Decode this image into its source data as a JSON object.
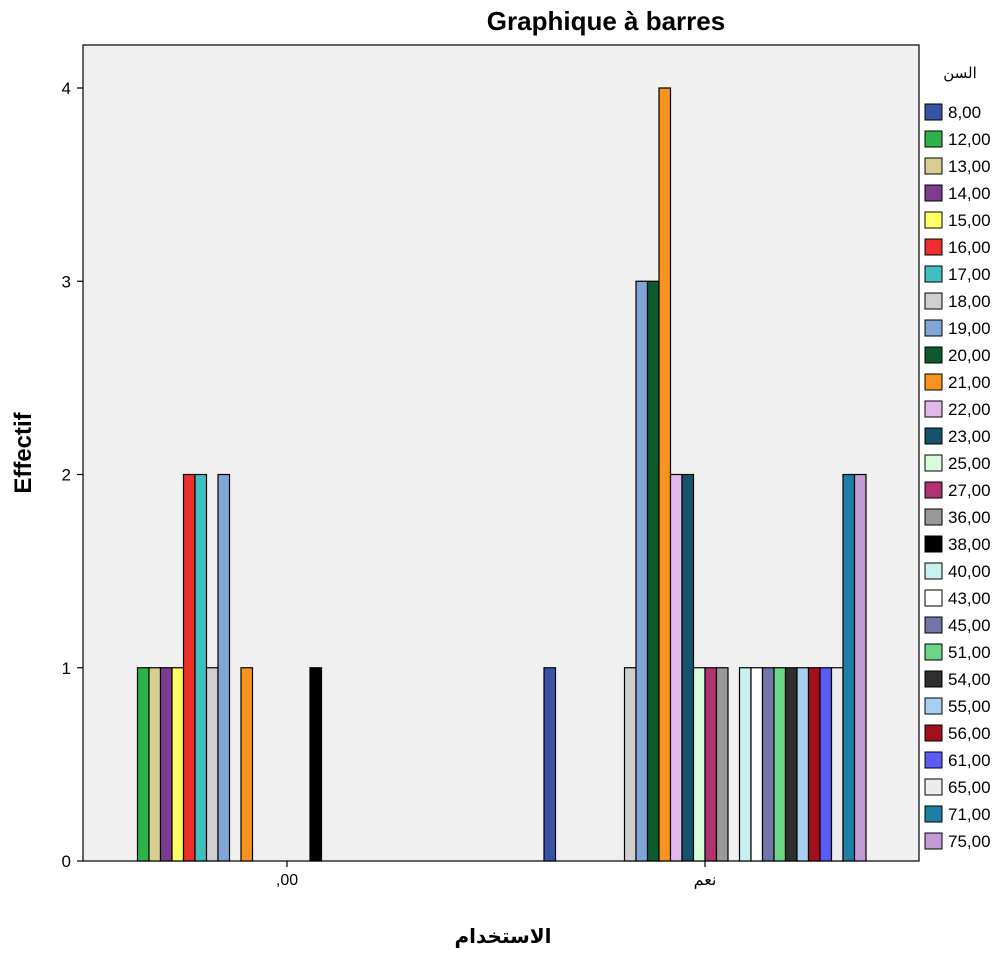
{
  "chart_data": {
    "type": "bar",
    "title": "Graphique à barres",
    "xlabel": "الاستخدام",
    "ylabel": "Effectif",
    "ylim": [
      0,
      4.2
    ],
    "yticks": [
      "0",
      "1",
      "2",
      "3",
      "4"
    ],
    "grid": false,
    "legend_position": "right",
    "legend_title": "السن",
    "categories": [
      ",00",
      "نعم"
    ],
    "series": [
      {
        "name": "8,00",
        "color": "#3953a4",
        "values": [
          0,
          1
        ]
      },
      {
        "name": "12,00",
        "color": "#2db34a",
        "values": [
          1,
          0
        ]
      },
      {
        "name": "13,00",
        "color": "#d7cf91",
        "values": [
          1,
          0
        ]
      },
      {
        "name": "14,00",
        "color": "#7d3c8f",
        "values": [
          1,
          0
        ]
      },
      {
        "name": "15,00",
        "color": "#ffff66",
        "values": [
          1,
          0
        ]
      },
      {
        "name": "16,00",
        "color": "#ee2d2d",
        "values": [
          2,
          0
        ]
      },
      {
        "name": "17,00",
        "color": "#3fbfbf",
        "values": [
          2,
          0
        ]
      },
      {
        "name": "18,00",
        "color": "#cfcfcf",
        "values": [
          1,
          1
        ]
      },
      {
        "name": "19,00",
        "color": "#80a6d8",
        "values": [
          2,
          3
        ]
      },
      {
        "name": "20,00",
        "color": "#0e5a2c",
        "values": [
          0,
          3
        ]
      },
      {
        "name": "21,00",
        "color": "#f7931e",
        "values": [
          1,
          4
        ]
      },
      {
        "name": "22,00",
        "color": "#e0b8ec",
        "values": [
          0,
          2
        ]
      },
      {
        "name": "23,00",
        "color": "#14536b",
        "values": [
          0,
          2
        ]
      },
      {
        "name": "25,00",
        "color": "#d9fcd9",
        "values": [
          0,
          1
        ]
      },
      {
        "name": "27,00",
        "color": "#b0336f",
        "values": [
          0,
          1
        ]
      },
      {
        "name": "36,00",
        "color": "#999999",
        "values": [
          0,
          1
        ]
      },
      {
        "name": "38,00",
        "color": "#000000",
        "values": [
          1,
          0
        ]
      },
      {
        "name": "40,00",
        "color": "#c8f0ee",
        "values": [
          0,
          1
        ]
      },
      {
        "name": "43,00",
        "color": "#ffffff",
        "values": [
          0,
          1
        ]
      },
      {
        "name": "45,00",
        "color": "#7474a8",
        "values": [
          0,
          1
        ]
      },
      {
        "name": "51,00",
        "color": "#6ad686",
        "values": [
          0,
          1
        ]
      },
      {
        "name": "54,00",
        "color": "#2e2e2e",
        "values": [
          0,
          1
        ]
      },
      {
        "name": "55,00",
        "color": "#a6cff2",
        "values": [
          0,
          1
        ]
      },
      {
        "name": "56,00",
        "color": "#a3101c",
        "values": [
          0,
          1
        ]
      },
      {
        "name": "61,00",
        "color": "#5b5bf5",
        "values": [
          0,
          1
        ]
      },
      {
        "name": "65,00",
        "color": "#ececec",
        "values": [
          0,
          1
        ]
      },
      {
        "name": "71,00",
        "color": "#1c7fa6",
        "values": [
          0,
          2
        ]
      },
      {
        "name": "75,00",
        "color": "#c49ad6",
        "values": [
          0,
          2
        ]
      }
    ]
  }
}
